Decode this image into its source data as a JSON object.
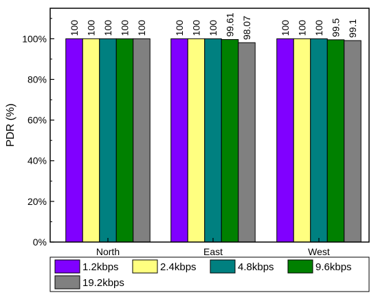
{
  "chart_data": {
    "type": "bar",
    "title": "",
    "xlabel": "",
    "ylabel": "PDR (%)",
    "ylim": [
      0,
      115
    ],
    "yticks": [
      0,
      20,
      40,
      60,
      80,
      100
    ],
    "ytick_labels": [
      "0%",
      "20%",
      "40%",
      "60%",
      "80%",
      "100%"
    ],
    "categories": [
      "North",
      "East",
      "West"
    ],
    "legend_position": "bottom",
    "grid": false,
    "series": [
      {
        "name": "1.2kbps",
        "color": "#8000ff",
        "values": [
          100,
          100,
          100
        ],
        "labels": [
          "100",
          "100",
          "100"
        ]
      },
      {
        "name": "2.4kbps",
        "color": "#ffff80",
        "values": [
          100,
          100,
          100
        ],
        "labels": [
          "100",
          "100",
          "100"
        ]
      },
      {
        "name": "4.8kbps",
        "color": "#008080",
        "values": [
          100,
          100,
          100
        ],
        "labels": [
          "100",
          "100",
          "100"
        ]
      },
      {
        "name": "9.6kbps",
        "color": "#008000",
        "values": [
          100,
          99.61,
          99.5
        ],
        "labels": [
          "100",
          "99.61",
          "99.5"
        ]
      },
      {
        "name": "19.2kbps",
        "color": "#808080",
        "values": [
          100,
          98.07,
          99.1
        ],
        "labels": [
          "100",
          "98.07",
          "99.1"
        ]
      }
    ]
  }
}
